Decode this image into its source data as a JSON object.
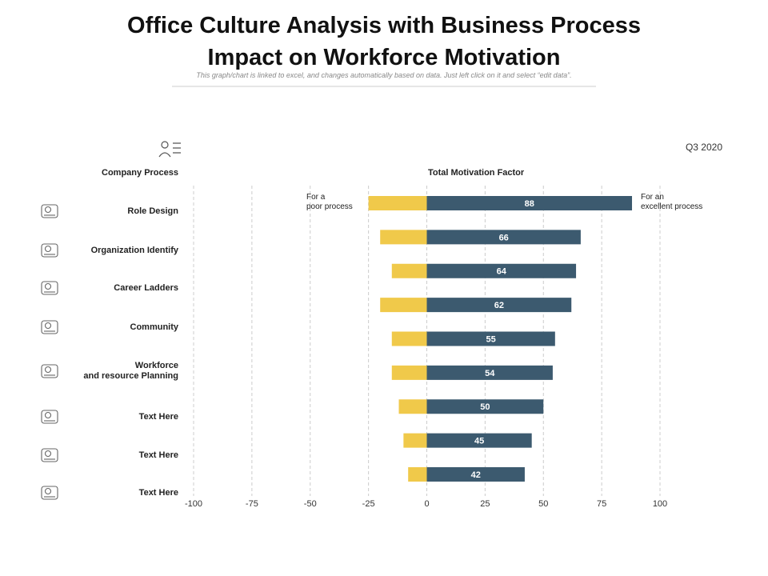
{
  "chart_data": {
    "type": "diverging_bar",
    "title": "Office Culture Analysis with Business Process\nImpact on Workforce Motivation",
    "subtitle": "This graph/chart is linked to excel, and changes automatically based on data. Just left click on it and select “edit data”.",
    "period": "Q3 2020",
    "left_header": "Company Process",
    "chart_header": "Total Motivation Factor",
    "annotations": [
      "For a\npoor process",
      "For an\nexcellent process"
    ],
    "process_labels": [
      "Role Design",
      "Organization Identify",
      "Career Ladders",
      "Community",
      "Workforce\nand resource Planning",
      "Text Here",
      "Text Here",
      "Text Here"
    ],
    "series": [
      {
        "color": "#f0c94a",
        "values": [
          -25,
          -20,
          -15,
          -20,
          -15,
          -15,
          -12,
          -10,
          -8
        ]
      },
      {
        "color": "#3c5a6f",
        "values": [
          88,
          66,
          64,
          62,
          55,
          54,
          50,
          45,
          42
        ]
      }
    ],
    "xlim": [
      -100,
      100
    ],
    "xticks": [
      -100,
      -75,
      -50,
      -25,
      0,
      25,
      50,
      75,
      100
    ],
    "grid": true
  }
}
